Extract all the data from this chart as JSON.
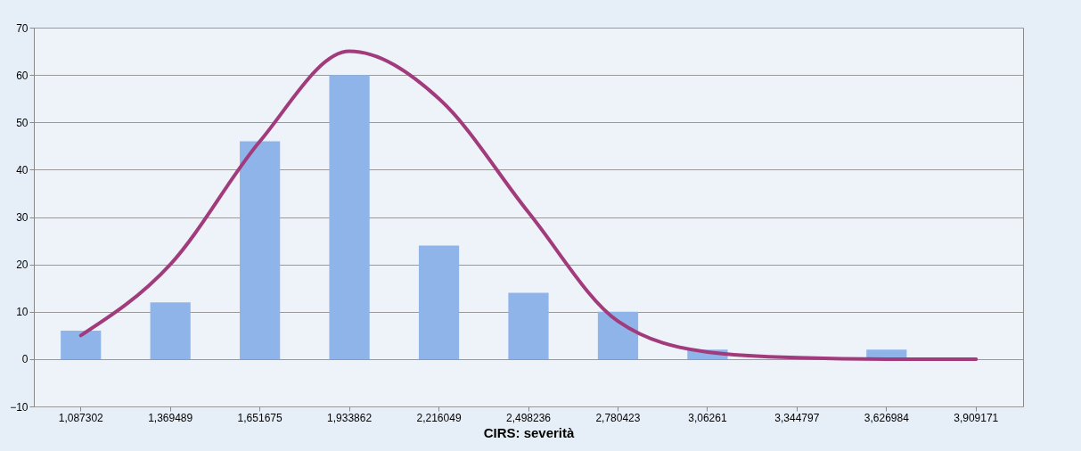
{
  "chart_data": {
    "type": "bar",
    "xlabel": "CIRS: severità",
    "categories": [
      "1,087302",
      "1,369489",
      "1,651675",
      "1,933862",
      "2,216049",
      "2,498236",
      "2,780423",
      "3,06261",
      "3,344797",
      "3,626984",
      "3,909171"
    ],
    "series": [
      {
        "color": "#8fb4ea",
        "values": [
          6,
          12,
          46,
          60,
          24,
          14,
          10,
          2,
          0,
          2,
          0
        ]
      },
      {
        "type": "line",
        "color": "#a23b7c",
        "values": [
          5,
          20,
          46,
          65,
          55,
          31,
          8,
          1.5,
          0.3,
          0,
          0
        ]
      }
    ],
    "ylim": [
      -10,
      70
    ],
    "yticks": [
      -10,
      0,
      10,
      20,
      30,
      40,
      50,
      60,
      70
    ],
    "grid": "y",
    "marker": "none",
    "line_style": "solid"
  }
}
